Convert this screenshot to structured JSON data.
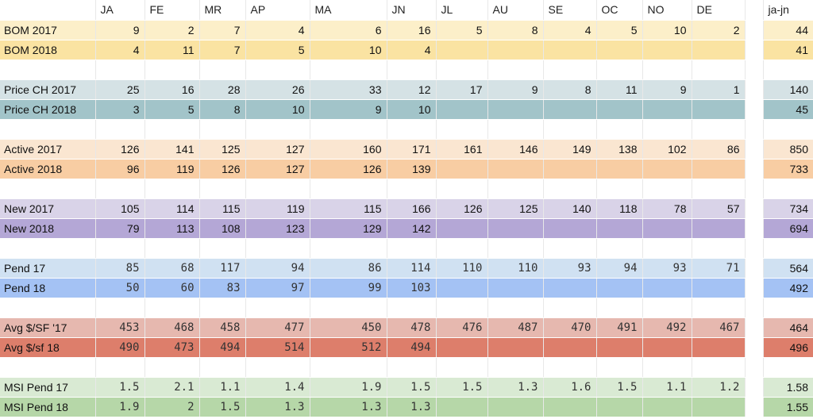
{
  "sheet": {
    "headers": [
      "",
      "JA",
      "FE",
      "MR",
      "AP",
      "MA",
      "JN",
      "JL",
      "AU",
      "SE",
      "OC",
      "NO",
      "DE",
      "",
      "ja-jn"
    ],
    "rows": [
      {
        "spacer": false,
        "label": "BOM 2017",
        "cells": [
          "9",
          "2",
          "7",
          "4",
          "6",
          "16",
          "5",
          "8",
          "4",
          "5",
          "10",
          "2"
        ],
        "total": "44",
        "bg": "#fcefc9",
        "mono": false
      },
      {
        "spacer": false,
        "label": "BOM 2018",
        "cells": [
          "4",
          "11",
          "7",
          "5",
          "10",
          "4",
          "",
          "",
          "",
          "",
          "",
          ""
        ],
        "total": "41",
        "bg": "#fae3a2",
        "mono": false
      },
      {
        "spacer": true
      },
      {
        "spacer": false,
        "label": "Price CH 2017",
        "cells": [
          "25",
          "16",
          "28",
          "26",
          "33",
          "12",
          "17",
          "9",
          "8",
          "11",
          "9",
          "1"
        ],
        "total": "140",
        "bg": "#d5e2e5",
        "mono": false
      },
      {
        "spacer": false,
        "label": "Price CH 2018",
        "cells": [
          "3",
          "5",
          "8",
          "10",
          "9",
          "10",
          "",
          "",
          "",
          "",
          "",
          ""
        ],
        "total": "45",
        "bg": "#a2c4c9",
        "mono": false
      },
      {
        "spacer": true
      },
      {
        "spacer": false,
        "label": "Active 2017",
        "cells": [
          "126",
          "141",
          "125",
          "127",
          "160",
          "171",
          "161",
          "146",
          "149",
          "138",
          "102",
          "86"
        ],
        "total": "850",
        "bg": "#fae6d1",
        "mono": false
      },
      {
        "spacer": false,
        "label": "Active 2018",
        "cells": [
          "96",
          "119",
          "126",
          "127",
          "126",
          "139",
          "",
          "",
          "",
          "",
          "",
          ""
        ],
        "total": "733",
        "bg": "#f8cda3",
        "mono": false
      },
      {
        "spacer": true
      },
      {
        "spacer": false,
        "label": "New 2017",
        "cells": [
          "105",
          "114",
          "115",
          "119",
          "115",
          "166",
          "126",
          "125",
          "140",
          "118",
          "78",
          "57"
        ],
        "total": "734",
        "bg": "#d9d3e8",
        "mono": false
      },
      {
        "spacer": false,
        "label": "New 2018",
        "cells": [
          "79",
          "113",
          "108",
          "123",
          "129",
          "142",
          "",
          "",
          "",
          "",
          "",
          ""
        ],
        "total": "694",
        "bg": "#b4a7d6",
        "mono": false
      },
      {
        "spacer": true
      },
      {
        "spacer": false,
        "label": "Pend 17",
        "cells": [
          "85",
          "68",
          "117",
          "94",
          "86",
          "114",
          "110",
          "110",
          "93",
          "94",
          "93",
          "71"
        ],
        "total": "564",
        "bg": "#d0e1f2",
        "mono": true
      },
      {
        "spacer": false,
        "label": "Pend 18",
        "cells": [
          "50",
          "60",
          "83",
          "97",
          "99",
          "103",
          "",
          "",
          "",
          "",
          "",
          ""
        ],
        "total": "492",
        "bg": "#a4c2f4",
        "mono": true
      },
      {
        "spacer": true
      },
      {
        "spacer": false,
        "label": "Avg $/SF '17",
        "cells": [
          "453",
          "468",
          "458",
          "477",
          "450",
          "478",
          "476",
          "487",
          "470",
          "491",
          "492",
          "467"
        ],
        "total": "464",
        "bg": "#e6b8af",
        "mono": true
      },
      {
        "spacer": false,
        "label": "Avg $/sf 18",
        "cells": [
          "490",
          "473",
          "494",
          "514",
          "512",
          "494",
          "",
          "",
          "",
          "",
          "",
          ""
        ],
        "total": "496",
        "bg": "#dd7e6b",
        "mono": true
      },
      {
        "spacer": true
      },
      {
        "spacer": false,
        "label": "MSI Pend 17",
        "cells": [
          "1.5",
          "2.1",
          "1.1",
          "1.4",
          "1.9",
          "1.5",
          "1.5",
          "1.3",
          "1.6",
          "1.5",
          "1.1",
          "1.2"
        ],
        "total": "1.58",
        "bg": "#d9ead3",
        "mono": true
      },
      {
        "spacer": false,
        "label": "MSI Pend 18",
        "cells": [
          "1.9",
          "2",
          "1.5",
          "1.3",
          "1.3",
          "1.3",
          "",
          "",
          "",
          "",
          "",
          ""
        ],
        "total": "1.55",
        "bg": "#b6d7a8",
        "mono": true
      }
    ]
  }
}
